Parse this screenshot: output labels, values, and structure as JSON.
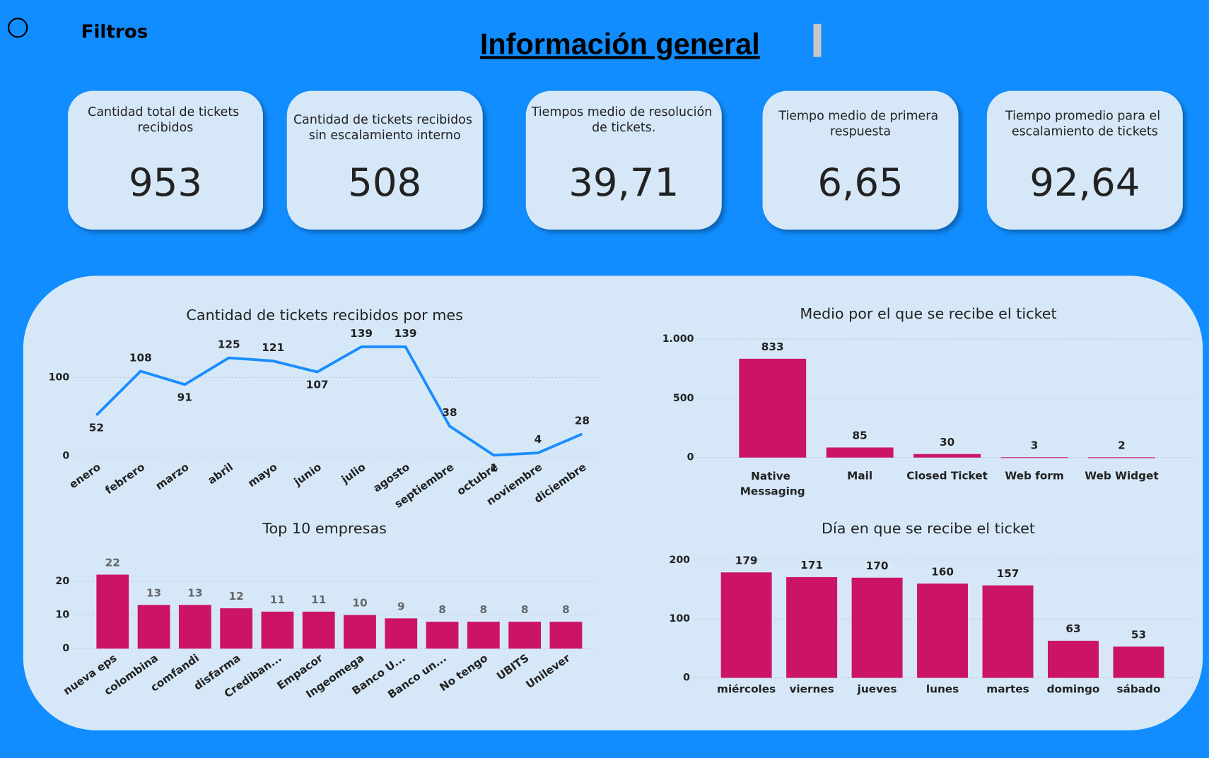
{
  "header": {
    "filters": "Filtros",
    "title": "Información general"
  },
  "kpis": [
    {
      "label": "Cantidad total de tickets recibidos",
      "value": "953"
    },
    {
      "label": "Cantidad de tickets recibidos sin escalamiento interno",
      "value": "508"
    },
    {
      "label": "Tiempos medio de resolución de tickets.",
      "value": "39,71"
    },
    {
      "label": "Tiempo medio de primera respuesta",
      "value": "6,65"
    },
    {
      "label": "Tiempo promedio para el escalamiento de tickets",
      "value": "92,64"
    }
  ],
  "chart_data": [
    {
      "type": "line",
      "title": "Cantidad de tickets recibidos por mes",
      "categories": [
        "enero",
        "febrero",
        "marzo",
        "abril",
        "mayo",
        "junio",
        "julio",
        "agosto",
        "septiembre",
        "octubre",
        "noviembre",
        "diciembre"
      ],
      "values": [
        52,
        108,
        91,
        125,
        121,
        107,
        139,
        139,
        38,
        1,
        4,
        28
      ],
      "color": "#1a8cff",
      "ylim": [
        0,
        150
      ],
      "yticks": [
        0,
        100
      ],
      "grid": true
    },
    {
      "type": "bar",
      "title": "Medio por el que se recibe el ticket",
      "categories": [
        "Native Messaging",
        "Mail",
        "Closed Ticket",
        "Web form",
        "Web Widget"
      ],
      "values": [
        833,
        85,
        30,
        3,
        2
      ],
      "color": "#cc1466",
      "ylim": [
        0,
        1000
      ],
      "yticks": [
        0,
        500,
        {
          "value": 1000,
          "label": "1.000"
        }
      ],
      "grid": true
    },
    {
      "type": "bar",
      "title": "Top 10 empresas",
      "categories": [
        "nueva eps",
        "colombina",
        "comfandi",
        "disfarma",
        "Crediban...",
        "Empacor",
        "Ingeomega",
        "Banco U...",
        "Banco un...",
        "No tengo",
        "UBITS",
        "Unilever"
      ],
      "values": [
        22,
        13,
        13,
        12,
        11,
        11,
        10,
        9,
        8,
        8,
        8,
        8
      ],
      "color": "#cc1466",
      "ylim": [
        0,
        22
      ],
      "yticks": [
        0,
        10,
        20
      ],
      "grid": true
    },
    {
      "type": "bar",
      "title": "Día en que se recibe el ticket",
      "categories": [
        "miércoles",
        "viernes",
        "jueves",
        "lunes",
        "martes",
        "domingo",
        "sábado"
      ],
      "values": [
        179,
        171,
        170,
        160,
        157,
        63,
        53
      ],
      "color": "#cc1466",
      "ylim": [
        0,
        200
      ],
      "yticks": [
        0,
        100,
        200
      ],
      "grid": true
    }
  ]
}
